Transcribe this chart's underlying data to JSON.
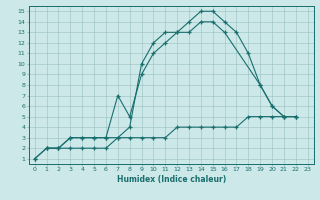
{
  "line1_x": [
    0,
    1,
    2,
    3,
    4,
    5,
    6,
    7,
    8,
    9,
    10,
    11,
    12,
    13,
    14,
    15,
    16,
    17,
    18,
    19,
    20,
    21,
    22
  ],
  "line1_y": [
    1,
    2,
    2,
    3,
    3,
    3,
    3,
    3,
    4,
    10,
    12,
    13,
    13,
    14,
    15,
    15,
    14,
    13,
    11,
    8,
    6,
    5,
    5
  ],
  "line2_x": [
    1,
    2,
    3,
    4,
    5,
    6,
    7,
    8,
    9,
    10,
    11,
    12,
    13,
    14,
    15,
    16,
    19,
    20,
    21,
    22
  ],
  "line2_y": [
    2,
    2,
    3,
    3,
    3,
    3,
    7,
    5,
    9,
    11,
    12,
    13,
    13,
    14,
    14,
    13,
    8,
    6,
    5,
    5
  ],
  "line3_x": [
    0,
    1,
    2,
    3,
    4,
    5,
    6,
    7,
    8,
    9,
    10,
    11,
    12,
    13,
    14,
    15,
    16,
    17,
    18,
    19,
    20,
    21,
    22
  ],
  "line3_y": [
    1,
    2,
    2,
    2,
    2,
    2,
    2,
    3,
    3,
    3,
    3,
    3,
    4,
    4,
    4,
    4,
    4,
    4,
    5,
    5,
    5,
    5,
    5
  ],
  "bg_color": "#cce8e8",
  "grid_color": "#9bbfbf",
  "line_color": "#1a6e6e",
  "xlabel": "Humidex (Indice chaleur)",
  "xlim": [
    -0.5,
    23.5
  ],
  "ylim": [
    0.5,
    15.5
  ],
  "yticks": [
    1,
    2,
    3,
    4,
    5,
    6,
    7,
    8,
    9,
    10,
    11,
    12,
    13,
    14,
    15
  ],
  "xticks": [
    0,
    1,
    2,
    3,
    4,
    5,
    6,
    7,
    8,
    9,
    10,
    11,
    12,
    13,
    14,
    15,
    16,
    17,
    18,
    19,
    20,
    21,
    22,
    23
  ]
}
